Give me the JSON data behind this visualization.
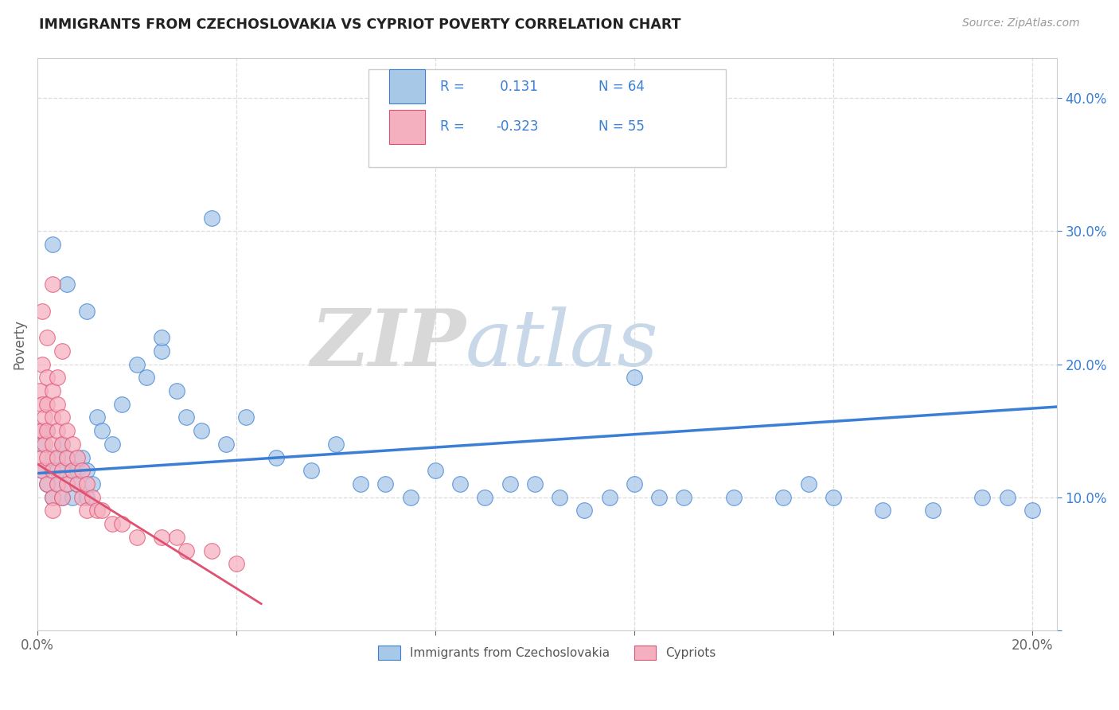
{
  "title": "IMMIGRANTS FROM CZECHOSLOVAKIA VS CYPRIOT POVERTY CORRELATION CHART",
  "source_text": "Source: ZipAtlas.com",
  "ylabel": "Poverty",
  "xlim": [
    0.0,
    0.205
  ],
  "ylim": [
    0.0,
    0.43
  ],
  "xticks": [
    0.0,
    0.04,
    0.08,
    0.12,
    0.16,
    0.2
  ],
  "yticks": [
    0.0,
    0.1,
    0.2,
    0.3,
    0.4
  ],
  "blue_color": "#a8c8e8",
  "pink_color": "#f5b0c0",
  "blue_line_color": "#3a7fd5",
  "pink_line_color": "#e05070",
  "watermark_zip": "ZIP",
  "watermark_atlas": "atlas",
  "legend_labels": [
    "Immigrants from Czechoslovakia",
    "Cypriots"
  ],
  "legend_r1": "0.131",
  "legend_n1": "64",
  "legend_r2": "-0.323",
  "legend_n2": "55",
  "blue_scatter_x": [
    0.001,
    0.001,
    0.002,
    0.002,
    0.003,
    0.003,
    0.004,
    0.004,
    0.005,
    0.005,
    0.006,
    0.006,
    0.007,
    0.007,
    0.008,
    0.008,
    0.009,
    0.01,
    0.01,
    0.011,
    0.012,
    0.013,
    0.015,
    0.017,
    0.02,
    0.022,
    0.025,
    0.028,
    0.03,
    0.033,
    0.038,
    0.042,
    0.048,
    0.055,
    0.06,
    0.065,
    0.07,
    0.075,
    0.08,
    0.085,
    0.09,
    0.095,
    0.1,
    0.105,
    0.11,
    0.115,
    0.12,
    0.125,
    0.13,
    0.14,
    0.15,
    0.155,
    0.16,
    0.17,
    0.18,
    0.19,
    0.195,
    0.2,
    0.003,
    0.006,
    0.01,
    0.025,
    0.035,
    0.12
  ],
  "blue_scatter_y": [
    0.14,
    0.12,
    0.15,
    0.11,
    0.13,
    0.1,
    0.12,
    0.11,
    0.14,
    0.1,
    0.13,
    0.11,
    0.12,
    0.1,
    0.11,
    0.12,
    0.13,
    0.12,
    0.1,
    0.11,
    0.16,
    0.15,
    0.14,
    0.17,
    0.2,
    0.19,
    0.21,
    0.18,
    0.16,
    0.15,
    0.14,
    0.16,
    0.13,
    0.12,
    0.14,
    0.11,
    0.11,
    0.1,
    0.12,
    0.11,
    0.1,
    0.11,
    0.11,
    0.1,
    0.09,
    0.1,
    0.11,
    0.1,
    0.1,
    0.1,
    0.1,
    0.11,
    0.1,
    0.09,
    0.09,
    0.1,
    0.1,
    0.09,
    0.29,
    0.26,
    0.24,
    0.22,
    0.31,
    0.19
  ],
  "pink_scatter_x": [
    0.0005,
    0.0005,
    0.001,
    0.001,
    0.001,
    0.001,
    0.001,
    0.0015,
    0.0015,
    0.002,
    0.002,
    0.002,
    0.002,
    0.002,
    0.003,
    0.003,
    0.003,
    0.003,
    0.003,
    0.003,
    0.004,
    0.004,
    0.004,
    0.004,
    0.005,
    0.005,
    0.005,
    0.005,
    0.006,
    0.006,
    0.006,
    0.007,
    0.007,
    0.008,
    0.008,
    0.009,
    0.009,
    0.01,
    0.01,
    0.011,
    0.012,
    0.013,
    0.015,
    0.017,
    0.02,
    0.025,
    0.028,
    0.03,
    0.035,
    0.04,
    0.001,
    0.002,
    0.003,
    0.004,
    0.005
  ],
  "pink_scatter_y": [
    0.18,
    0.15,
    0.2,
    0.17,
    0.15,
    0.13,
    0.12,
    0.16,
    0.14,
    0.19,
    0.17,
    0.15,
    0.13,
    0.11,
    0.18,
    0.16,
    0.14,
    0.12,
    0.1,
    0.09,
    0.17,
    0.15,
    0.13,
    0.11,
    0.16,
    0.14,
    0.12,
    0.1,
    0.15,
    0.13,
    0.11,
    0.14,
    0.12,
    0.13,
    0.11,
    0.12,
    0.1,
    0.11,
    0.09,
    0.1,
    0.09,
    0.09,
    0.08,
    0.08,
    0.07,
    0.07,
    0.07,
    0.06,
    0.06,
    0.05,
    0.24,
    0.22,
    0.26,
    0.19,
    0.21
  ],
  "blue_trend_x": [
    0.0,
    0.205
  ],
  "blue_trend_y": [
    0.118,
    0.168
  ],
  "pink_trend_x": [
    0.0,
    0.045
  ],
  "pink_trend_y": [
    0.125,
    0.02
  ],
  "background_color": "#ffffff",
  "grid_color": "#dddddd"
}
